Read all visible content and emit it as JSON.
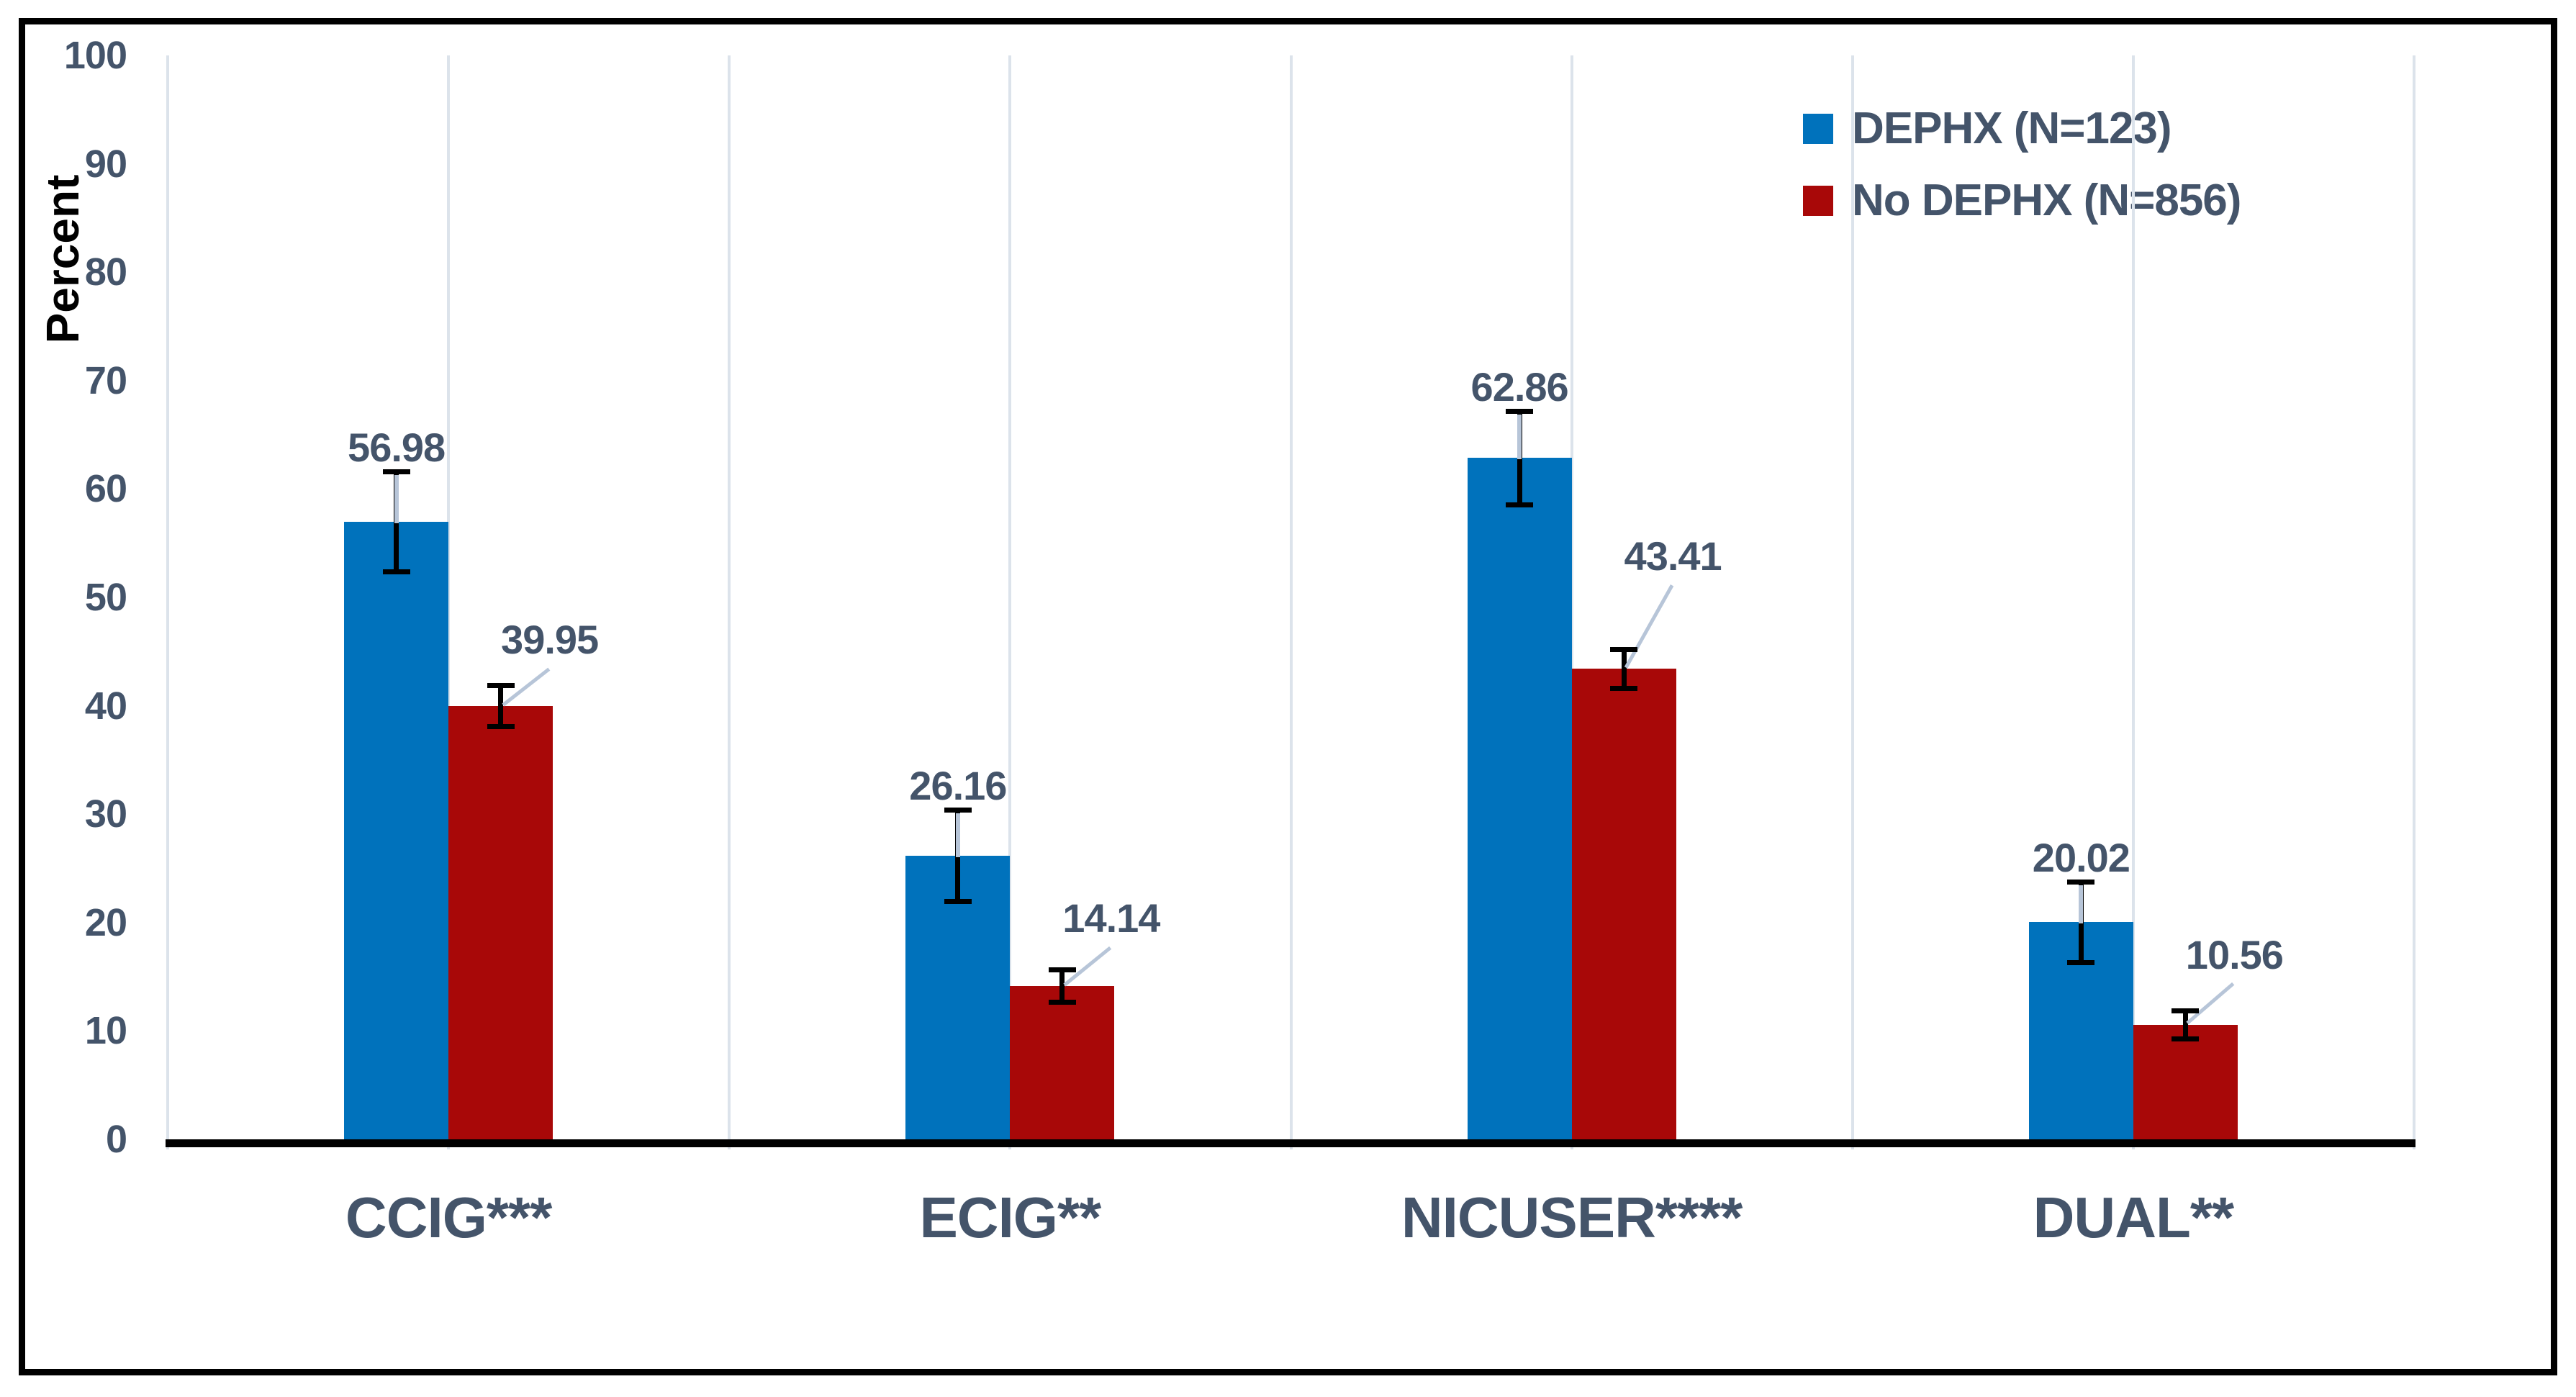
{
  "chart_data": {
    "type": "bar",
    "title": "",
    "xlabel": "",
    "ylabel": "Percent",
    "ylim": [
      0,
      100
    ],
    "yticks": [
      0,
      10,
      20,
      30,
      40,
      50,
      60,
      70,
      80,
      90,
      100
    ],
    "grid": "vertical-category-gridlines",
    "legend_position": "top-right",
    "categories": [
      "CCIG***",
      "ECIG**",
      "NICUSER****",
      "DUAL**"
    ],
    "series": [
      {
        "name": "DEPHX (N=123)",
        "color": "#0072BC",
        "values": [
          56.98,
          26.16,
          62.86,
          20.02
        ],
        "labels": [
          "56.98",
          "26.16",
          "62.86",
          "20.02"
        ],
        "error_bars": [
          4.6,
          4.2,
          4.3,
          3.7
        ]
      },
      {
        "name": "No DEPHX (N=856)",
        "color": "#A80808",
        "values": [
          39.95,
          14.14,
          43.41,
          10.56
        ],
        "labels": [
          "39.95",
          "14.14",
          "43.41",
          "10.56"
        ],
        "error_bars": [
          1.9,
          1.5,
          1.8,
          1.3
        ]
      }
    ],
    "style": {
      "label_color": "#44546A",
      "axis_text_color": "#44546A",
      "ylabel_color": "#000000",
      "gridline_color": "#DCE3EB",
      "leader_line_color": "#B7C5D8",
      "error_bar_color": "#000000",
      "baseline_color": "#000000",
      "background": "#FFFFFF",
      "border_color": "#000000"
    }
  }
}
